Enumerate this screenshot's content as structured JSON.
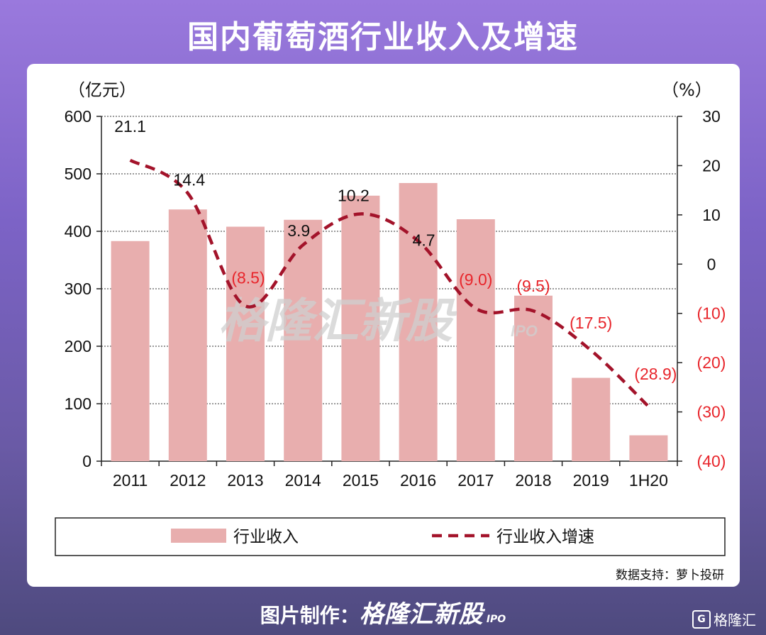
{
  "title": "国内葡萄酒行业收入及增速",
  "source_text": "数据支持：萝卜投研",
  "footer": {
    "prefix": "图片制作：",
    "brand": "格隆汇新股",
    "brand_sub": "IPO"
  },
  "corner_logo": {
    "icon": "G",
    "text": "格隆汇"
  },
  "watermark": {
    "text": "格隆汇新股",
    "sub": "IPO"
  },
  "chart_data": {
    "type": "bar",
    "categories": [
      "2011",
      "2012",
      "2013",
      "2014",
      "2015",
      "2016",
      "2017",
      "2018",
      "2019",
      "1H20"
    ],
    "left_axis": {
      "label": "（亿元）",
      "min": 0,
      "max": 600,
      "ticks": [
        "0",
        "100",
        "200",
        "300",
        "400",
        "500",
        "600"
      ],
      "tick_values": [
        0,
        100,
        200,
        300,
        400,
        500,
        600
      ]
    },
    "right_axis": {
      "label": "（%）",
      "min": -40,
      "max": 30,
      "ticks": [
        "(40)",
        "(30)",
        "(20)",
        "(10)",
        "0",
        "10",
        "20",
        "30"
      ],
      "tick_values": [
        -40,
        -30,
        -20,
        -10,
        0,
        10,
        20,
        30
      ]
    },
    "series": [
      {
        "name": "行业收入",
        "type": "bar",
        "axis": "left",
        "color": "#e8aeae",
        "values": [
          383,
          438,
          408,
          420,
          462,
          484,
          421,
          288,
          145,
          45
        ]
      },
      {
        "name": "行业收入增速",
        "type": "line",
        "axis": "right",
        "color": "#a3132a",
        "values": [
          21.1,
          14.4,
          -8.5,
          3.9,
          10.2,
          4.7,
          -9.0,
          -9.5,
          -17.5,
          -28.9
        ],
        "labels": [
          "21.1",
          "14.4",
          "(8.5)",
          "3.9",
          "10.2",
          "4.7",
          "(9.0)",
          "(9.5)",
          "(17.5)",
          "(28.9)"
        ]
      }
    ],
    "grid": true,
    "legend": "bottom",
    "colors": {
      "negative_label": "#e8252b",
      "positive_label": "#111111",
      "axis": "#222222"
    }
  }
}
